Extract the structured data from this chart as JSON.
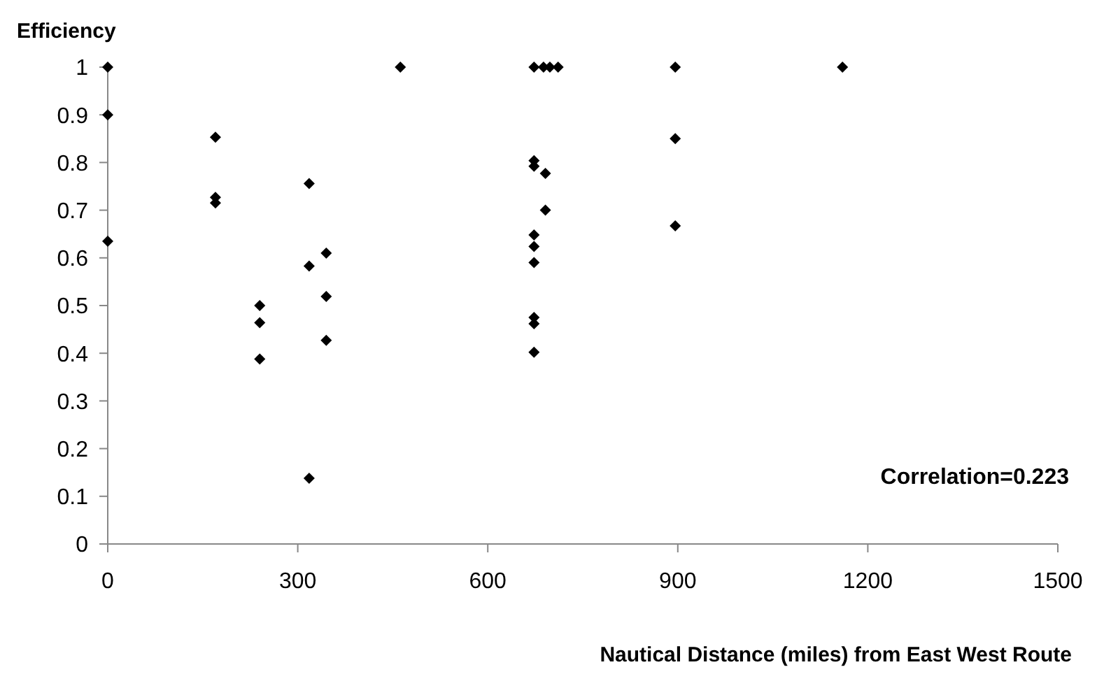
{
  "chart_data": {
    "type": "scatter",
    "ylabel": "Efficiency",
    "xlabel": "Nautical Distance (miles) from East West Route",
    "annotations": [
      "Correlation=0.223"
    ],
    "x": [
      0,
      0,
      0,
      170,
      170,
      170,
      240,
      240,
      240,
      318,
      318,
      318,
      345,
      345,
      345,
      462,
      673,
      688,
      698,
      711,
      896,
      1160,
      896,
      896,
      673,
      673,
      691,
      691,
      673,
      673,
      673,
      673,
      673,
      673
    ],
    "values": [
      1.0,
      0.9,
      0.635,
      0.853,
      0.727,
      0.715,
      0.5,
      0.464,
      0.388,
      0.756,
      0.583,
      0.138,
      0.61,
      0.519,
      0.427,
      1.0,
      1.0,
      1.0,
      1.0,
      1.0,
      1.0,
      1.0,
      0.85,
      0.667,
      0.804,
      0.792,
      0.777,
      0.7,
      0.648,
      0.624,
      0.59,
      0.475,
      0.462,
      0.402
    ],
    "color": "#000000",
    "marker": "diamond",
    "grid": false,
    "legend": false,
    "xlim": [
      0,
      1500
    ],
    "xticks": [
      0,
      300,
      600,
      900,
      1200,
      1500
    ],
    "ylim": [
      0,
      1
    ],
    "yticks": [
      0,
      0.1,
      0.2,
      0.3,
      0.4,
      0.5,
      0.6,
      0.7,
      0.8,
      0.9,
      1
    ]
  }
}
